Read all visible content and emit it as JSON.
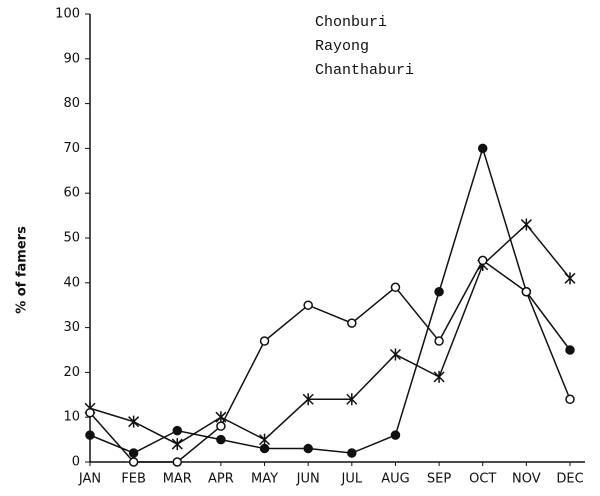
{
  "chart_data": {
    "type": "line",
    "y_label": "% of famers",
    "categories": [
      "JAN",
      "FEB",
      "MAR",
      "APR",
      "MAY",
      "JUN",
      "JUL",
      "AUG",
      "SEP",
      "OCT",
      "NOV",
      "DEC"
    ],
    "series": [
      {
        "name": "Chonburi",
        "color": "#111111",
        "marker": "filled-circle",
        "values": [
          6,
          2,
          7,
          5,
          3,
          3,
          2,
          6,
          38,
          70,
          38,
          25
        ]
      },
      {
        "name": "Rayong",
        "color": "#111111",
        "marker": "cross",
        "values": [
          12,
          9,
          4,
          10,
          5,
          14,
          14,
          24,
          19,
          44,
          53,
          41
        ]
      },
      {
        "name": "Chanthaburi",
        "color": "#111111",
        "marker": "open-circle",
        "values": [
          11,
          0,
          0,
          8,
          27,
          35,
          31,
          39,
          27,
          45,
          38,
          14
        ]
      }
    ],
    "ylim": [
      0,
      100
    ],
    "yticks": [
      0,
      10,
      20,
      30,
      40,
      50,
      60,
      70,
      80,
      90,
      100
    ]
  }
}
